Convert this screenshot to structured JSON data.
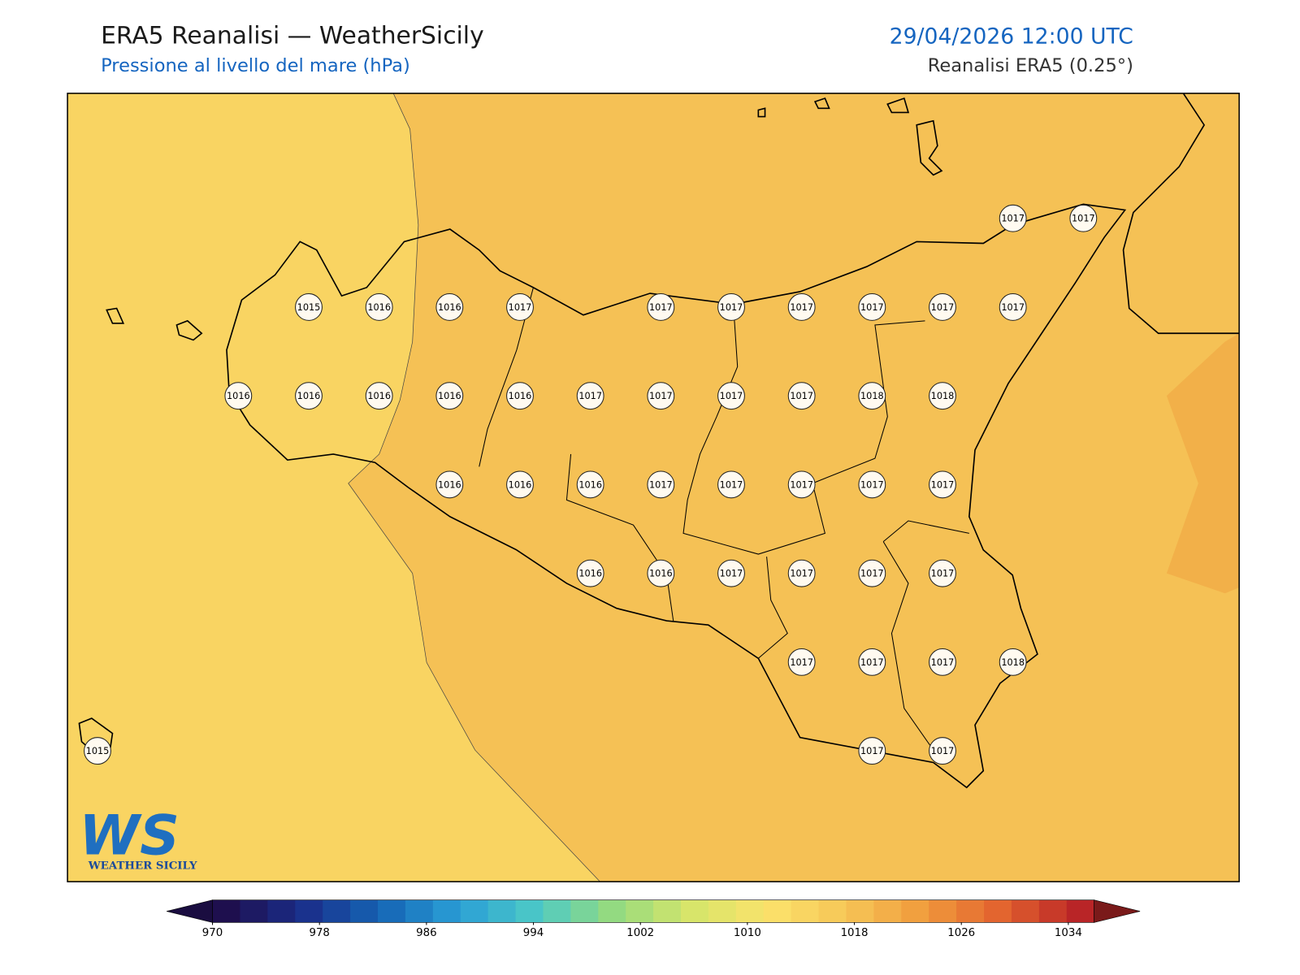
{
  "header": {
    "title": "ERA5 Reanalisi — WeatherSicily",
    "subtitle": "Pressione al livello del mare (hPa)",
    "datetime": "29/04/2026 12:00 UTC",
    "source": "Reanalisi ERA5 (0.25°)"
  },
  "map": {
    "station_rows": [
      [
        null,
        null,
        null,
        null,
        null,
        null,
        null,
        null,
        null,
        null,
        null,
        null,
        null,
        1017,
        1017
      ],
      [
        null,
        null,
        null,
        1015,
        1016,
        1016,
        1017,
        null,
        1017,
        1017,
        1017,
        1017,
        1017,
        1017,
        null
      ],
      [
        null,
        null,
        1016,
        1016,
        1016,
        1016,
        1016,
        1017,
        1017,
        1017,
        1017,
        1018,
        1018,
        null,
        null
      ],
      [
        null,
        null,
        null,
        null,
        null,
        1016,
        1016,
        1016,
        1017,
        1017,
        1017,
        1017,
        1017,
        null,
        null
      ],
      [
        null,
        null,
        null,
        null,
        null,
        null,
        null,
        1016,
        1016,
        1017,
        1017,
        1017,
        1017,
        null,
        null
      ],
      [
        null,
        null,
        null,
        null,
        null,
        null,
        null,
        null,
        null,
        null,
        1017,
        1017,
        1017,
        1018,
        null
      ],
      [
        1015,
        null,
        null,
        null,
        null,
        null,
        null,
        null,
        null,
        null,
        null,
        1017,
        1017,
        null,
        null
      ]
    ]
  },
  "colorbar": {
    "ticks": [
      970,
      978,
      986,
      994,
      1002,
      1010,
      1018,
      1026,
      1034
    ]
  },
  "logo": {
    "initials": "WS",
    "name": "WEATHER SICILY"
  }
}
